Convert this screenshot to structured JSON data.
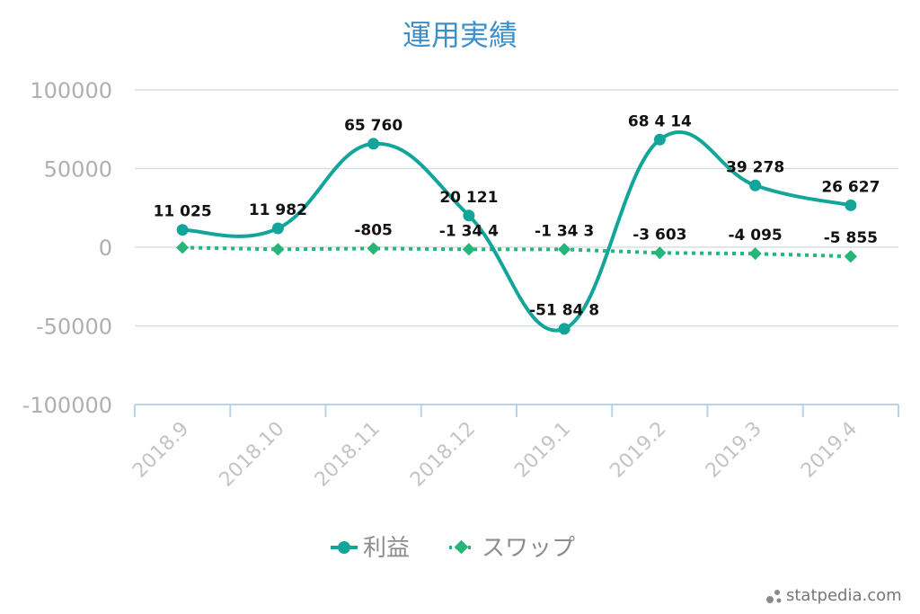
{
  "chart_data": {
    "type": "line",
    "title": "運用実績",
    "categories": [
      "2018.9",
      "2018.10",
      "2018.11",
      "2018.12",
      "2019.1",
      "2019.2",
      "2019.3",
      "2019.4"
    ],
    "ylim": [
      -100000,
      100000
    ],
    "yticks": [
      100000,
      50000,
      0,
      -50000,
      -100000
    ],
    "grid": true,
    "legend_position": "bottom",
    "series": [
      {
        "name": "利益",
        "values": [
          11025,
          11982,
          65760,
          20121,
          -51848,
          68414,
          39278,
          26627
        ],
        "labels": [
          "11 025",
          "11 982",
          "65 760",
          "20 121",
          "-51 84 8",
          "68 4 14",
          "39 278",
          "26 627"
        ],
        "color": "#13a59a",
        "style": "solid",
        "marker": "circle"
      },
      {
        "name": "スワップ",
        "values": [
          -200,
          -1344,
          -805,
          -1344,
          -1343,
          -3603,
          -4095,
          -5855
        ],
        "labels": [
          "",
          "",
          "-805",
          "-1 34 4",
          "-1 34 3",
          "-3 603",
          "-4  095",
          "-5 855"
        ],
        "color": "#27b679",
        "style": "dotted",
        "marker": "diamond"
      }
    ]
  },
  "watermark": "statpedia.com"
}
